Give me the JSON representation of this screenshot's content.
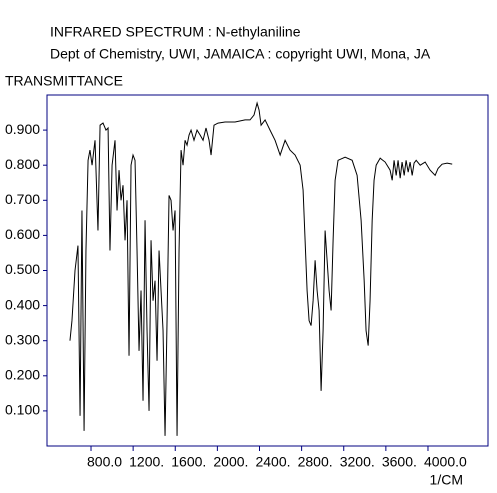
{
  "chart_data": {
    "type": "line",
    "title": "INFRARED SPECTRUM : N-ethylaniline",
    "subtitle": "Dept of Chemistry, UWI, JAMAICA : copyright UWI, Mona, JA",
    "y_label": "TRANSMITTANCE",
    "x_label": "1/CM",
    "xlim": [
      382,
      4570
    ],
    "ylim": [
      0,
      1.0
    ],
    "xticks": [
      {
        "value": 800,
        "label": "800.0"
      },
      {
        "value": 1200,
        "label": "1200."
      },
      {
        "value": 1600,
        "label": "1600."
      },
      {
        "value": 2000,
        "label": "2000."
      },
      {
        "value": 2400,
        "label": "2400."
      },
      {
        "value": 2800,
        "label": "2800."
      },
      {
        "value": 3200,
        "label": "3200."
      },
      {
        "value": 3600,
        "label": "3600."
      },
      {
        "value": 4000,
        "label": "4000.0"
      }
    ],
    "yticks": [
      {
        "value": 0.1,
        "label": "0.100"
      },
      {
        "value": 0.2,
        "label": "0.200"
      },
      {
        "value": 0.3,
        "label": "0.300"
      },
      {
        "value": 0.4,
        "label": "0.400"
      },
      {
        "value": 0.5,
        "label": "0.500"
      },
      {
        "value": 0.6,
        "label": "0.600"
      },
      {
        "value": 0.7,
        "label": "0.700"
      },
      {
        "value": 0.8,
        "label": "0.800"
      },
      {
        "value": 0.9,
        "label": "0.900"
      }
    ],
    "x": [
      600,
      619,
      648,
      676,
      696,
      714,
      734,
      752,
      772,
      790,
      810,
      838,
      866,
      886,
      914,
      942,
      962,
      980,
      1000,
      1028,
      1047,
      1066,
      1085,
      1104,
      1123,
      1142,
      1161,
      1180,
      1199,
      1218,
      1237,
      1256,
      1275,
      1294,
      1313,
      1332,
      1351,
      1370,
      1389,
      1408,
      1427,
      1446,
      1465,
      1484,
      1503,
      1522,
      1541,
      1560,
      1579,
      1598,
      1617,
      1636,
      1655,
      1674,
      1693,
      1712,
      1731,
      1750,
      1778,
      1807,
      1836,
      1864,
      1892,
      1921,
      1940,
      1968,
      2006,
      2073,
      2168,
      2263,
      2310,
      2348,
      2377,
      2396,
      2415,
      2453,
      2500,
      2548,
      2596,
      2643,
      2690,
      2738,
      2786,
      2814,
      2833,
      2852,
      2871,
      2890,
      2909,
      2928,
      2947,
      2966,
      2985,
      3004,
      3023,
      3042,
      3061,
      3080,
      3099,
      3118,
      3146,
      3213,
      3280,
      3327,
      3365,
      3394,
      3412,
      3432,
      3450,
      3470,
      3488,
      3508,
      3546,
      3593,
      3640,
      3660,
      3678,
      3698,
      3716,
      3736,
      3754,
      3774,
      3792,
      3812,
      3830,
      3850,
      3868,
      3888,
      3926,
      3973,
      4020,
      4068,
      4096,
      4134,
      4182,
      4230
    ],
    "series": [
      {
        "color": "#000000",
        "values": [
          0.3,
          0.357,
          0.5,
          0.571,
          0.086,
          0.671,
          0.043,
          0.557,
          0.814,
          0.843,
          0.8,
          0.871,
          0.614,
          0.914,
          0.92,
          0.9,
          0.906,
          0.557,
          0.8,
          0.871,
          0.671,
          0.786,
          0.7,
          0.743,
          0.586,
          0.7,
          0.257,
          0.8,
          0.829,
          0.814,
          0.557,
          0.271,
          0.443,
          0.129,
          0.643,
          0.329,
          0.1,
          0.586,
          0.414,
          0.471,
          0.243,
          0.557,
          0.443,
          0.329,
          0.029,
          0.357,
          0.714,
          0.7,
          0.614,
          0.671,
          0.029,
          0.557,
          0.843,
          0.8,
          0.871,
          0.857,
          0.886,
          0.9,
          0.871,
          0.9,
          0.886,
          0.871,
          0.906,
          0.871,
          0.829,
          0.914,
          0.92,
          0.923,
          0.923,
          0.929,
          0.929,
          0.943,
          0.977,
          0.957,
          0.914,
          0.929,
          0.9,
          0.871,
          0.829,
          0.871,
          0.843,
          0.829,
          0.8,
          0.729,
          0.586,
          0.443,
          0.357,
          0.343,
          0.414,
          0.529,
          0.443,
          0.386,
          0.157,
          0.329,
          0.614,
          0.529,
          0.443,
          0.386,
          0.586,
          0.757,
          0.814,
          0.823,
          0.814,
          0.771,
          0.643,
          0.471,
          0.329,
          0.286,
          0.414,
          0.643,
          0.757,
          0.8,
          0.82,
          0.809,
          0.786,
          0.757,
          0.814,
          0.771,
          0.814,
          0.763,
          0.809,
          0.771,
          0.814,
          0.78,
          0.809,
          0.771,
          0.806,
          0.814,
          0.8,
          0.809,
          0.786,
          0.771,
          0.791,
          0.803,
          0.806,
          0.803
        ]
      }
    ]
  }
}
